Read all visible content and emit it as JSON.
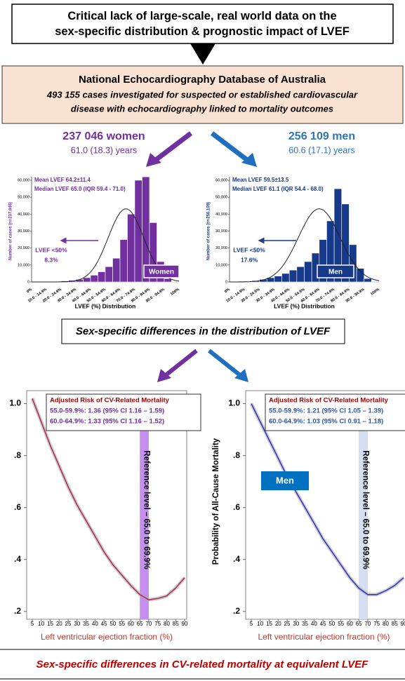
{
  "top_box": "Critical lack of large-scale, real world data on the sex-specific distribution & prognostic impact of LVEF",
  "database": {
    "title": "National Echocardiography Database of Australia",
    "subtitle_lines": [
      "493 155 cases investigated for suspected or established cardiovascular",
      "disease with echocardiography linked to mortality outcomes"
    ]
  },
  "histograms": [
    {
      "heading": "237 046 women",
      "age": "61.0 (18.3) years",
      "color": "#7030a0",
      "stats": [
        "Mean LVEF  64.2±11.4",
        "Median LVEF 65.0 (IQR 59.4 - 71.0)"
      ],
      "ylabel": "Number of cases (n=237,046)",
      "xlabel": "LVEF (%) Distribution",
      "arrow_label": "LVEF <50%",
      "arrow_value": "8.3%",
      "badge": "Women",
      "ylim": [
        0,
        60000
      ],
      "yticks": [
        0,
        {
          "value": 10000,
          "label": "10,000"
        },
        {
          "value": 20000,
          "label": "20,000"
        },
        {
          "value": 30000,
          "label": "30,000"
        },
        {
          "value": 40000,
          "label": "40,000"
        },
        {
          "value": 50000,
          "label": "50,000"
        },
        {
          "value": 60000,
          "label": "60,000"
        }
      ],
      "xtick_labels": [
        "0%",
        "10.0 - 14.9%",
        "20.0 - 24.9%",
        "30.0 - 34.9%",
        "40.0 - 44.9%",
        "50.0 - 54.9%",
        "60.0 - 64.9%",
        "70.0 - 74.9%",
        "80.0 - 84.9%",
        "90.0 - 94.9%",
        "100%"
      ],
      "values": [
        0,
        0,
        100,
        300,
        600,
        1000,
        1500,
        2500,
        4000,
        6000,
        9000,
        14000,
        25000,
        40000,
        60000,
        62000,
        35000,
        12000,
        2000,
        300
      ]
    },
    {
      "heading": "256 109 men",
      "age": "60.6 (17.1) years",
      "color": "#16398a",
      "heading_color": "#2e75b6",
      "stats": [
        "Mean LVEF  59.5±13.5",
        "Median LVEF 61.1 (IQR 54.4 - 68.0)"
      ],
      "ylabel": "Number of cases (n=256,109)",
      "xlabel": "LVEF (%) Distribution",
      "arrow_label": "LVEF <50%",
      "arrow_value": "17.6%",
      "badge": "Men",
      "ylim": [
        0,
        60000
      ],
      "yticks": [
        0,
        {
          "value": 10000,
          "label": "10,000"
        },
        {
          "value": 20000,
          "label": "20,000"
        },
        {
          "value": 30000,
          "label": "30,000"
        },
        {
          "value": 40000,
          "label": "40,000"
        },
        {
          "value": 50000,
          "label": "50,000"
        },
        {
          "value": 60000,
          "label": "60,000"
        }
      ],
      "xtick_labels": [
        "0%",
        "10.0 - 14.9%",
        "20.0 - 24.9%",
        "30.0 - 34.9%",
        "40.0 - 44.9%",
        "50.0 - 54.9%",
        "60.0 - 64.9%",
        "70.0 - 74.9%",
        "80.0 - 84.9%",
        "90.0 - 94.9%",
        "100%"
      ],
      "values": [
        0,
        0,
        300,
        800,
        1500,
        2500,
        3500,
        5000,
        7000,
        9000,
        12000,
        17000,
        25000,
        36000,
        55000,
        46000,
        22000,
        8000,
        2000,
        300
      ]
    }
  ],
  "middle_box": "Sex-specific differences in the distribution of LVEF",
  "risk_panels": [
    {
      "risk_title": "Adjusted Risk of CV-Related Mortality",
      "risk_lines": [
        "55.0-59.9%: 1.36 (95% CI 1.16 – 1.59)",
        "60.0-64.9%: 1.33 (95% CI 1.16 – 1.52)"
      ],
      "line_color": "#b0305a",
      "band_color": "#c58ff0",
      "reference": "Reference level – 65.0 to 69.9%",
      "band": [
        65,
        70
      ],
      "xlabel": "Left ventricular ejection fraction (%)",
      "x": [
        5,
        10,
        15,
        20,
        25,
        30,
        35,
        40,
        45,
        50,
        55,
        60,
        65,
        70,
        75,
        80,
        85,
        90
      ],
      "y": [
        1.02,
        0.93,
        0.84,
        0.76,
        0.68,
        0.61,
        0.55,
        0.49,
        0.43,
        0.38,
        0.34,
        0.3,
        0.265,
        0.245,
        0.25,
        0.26,
        0.29,
        0.33
      ]
    },
    {
      "risk_title": "Adjusted Risk of CV-Related Mortality",
      "risk_lines": [
        "55.0-59.9%: 1.21 (95% CI 1.05 – 1.39)",
        "60.0-64.9%: 1.03 (95% CI 0.91 – 1.18)"
      ],
      "line_color": "#3a3ab8",
      "band_color": "#d5dff2",
      "reference": "Reference level – 65.0 to 69.9%",
      "band": [
        65,
        70
      ],
      "xlabel": "Left ventricular ejection fraction (%)",
      "ylabel": "Probability of All-Cause Mortality",
      "badge": "Men",
      "x": [
        5,
        10,
        15,
        20,
        25,
        30,
        35,
        40,
        45,
        50,
        55,
        60,
        65,
        70,
        75,
        80,
        85,
        90
      ],
      "y": [
        1.0,
        0.93,
        0.86,
        0.79,
        0.72,
        0.66,
        0.6,
        0.54,
        0.48,
        0.43,
        0.38,
        0.33,
        0.29,
        0.265,
        0.265,
        0.28,
        0.3,
        0.33
      ]
    }
  ],
  "curve_axes": {
    "ylim": [
      0.17,
      1.05
    ],
    "yticks": [
      {
        "value": 1,
        "label": "1.0"
      },
      {
        "value": 0.8,
        "label": ".8"
      },
      {
        "value": 0.6,
        "label": ".6"
      },
      {
        "value": 0.4,
        "label": ".4"
      },
      {
        "value": 0.2,
        "label": ".2"
      }
    ],
    "xlim": [
      5,
      90
    ],
    "xticks": [
      5,
      10,
      15,
      20,
      25,
      30,
      35,
      40,
      45,
      50,
      55,
      60,
      65,
      70,
      75,
      80,
      85,
      90
    ]
  },
  "bottom_text": "Sex-specific differences in CV-related mortality at equivalent LVEF"
}
